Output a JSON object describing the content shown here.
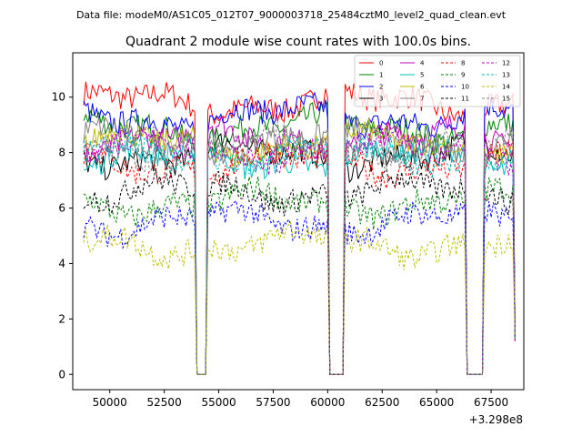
{
  "suptitle": "Data file: modeM0/AS1C05_012T07_9000003718_25484cztM0_level2_quad_clean.evt",
  "chart_data": {
    "type": "line",
    "title": "Quadrant 2 module wise count rates with 100.0s bins.",
    "xlabel": "",
    "ylabel": "",
    "x_offset_label": "+3.298e8",
    "xlim": [
      48300,
      69000
    ],
    "ylim": [
      -0.55,
      11.6
    ],
    "xticks": [
      50000,
      52500,
      55000,
      57500,
      60000,
      62500,
      65000,
      67500
    ],
    "xtick_labels": [
      "50000",
      "52500",
      "55000",
      "57500",
      "60000",
      "62500",
      "65000",
      "67500"
    ],
    "yticks": [
      0,
      2,
      4,
      6,
      8,
      10
    ],
    "ytick_labels": [
      "0",
      "2",
      "4",
      "6",
      "8",
      "10"
    ],
    "time_range": [
      48800,
      68600
    ],
    "bin_size": 100,
    "gaps": [
      [
        54000,
        54400
      ],
      [
        60050,
        60700
      ],
      [
        66400,
        67100
      ]
    ],
    "legend_location": "upper right",
    "series": [
      {
        "name": "0",
        "color": "#ff0000",
        "dash": "solid",
        "mean": 9.8
      },
      {
        "name": "1",
        "color": "#008000",
        "dash": "solid",
        "mean": 8.9
      },
      {
        "name": "2",
        "color": "#0000ff",
        "dash": "solid",
        "mean": 9.3
      },
      {
        "name": "3",
        "color": "#000000",
        "dash": "solid",
        "mean": 7.9
      },
      {
        "name": "4",
        "color": "#bf00bf",
        "dash": "solid",
        "mean": 8.5
      },
      {
        "name": "5",
        "color": "#00bfbf",
        "dash": "solid",
        "mean": 7.8
      },
      {
        "name": "6",
        "color": "#bfbf00",
        "dash": "solid",
        "mean": 8.3
      },
      {
        "name": "7",
        "color": "#808080",
        "dash": "solid",
        "mean": 8.4
      },
      {
        "name": "8",
        "color": "#ff0000",
        "dash": "dashed",
        "mean": 7.6
      },
      {
        "name": "9",
        "color": "#008000",
        "dash": "dashed",
        "mean": 6.2
      },
      {
        "name": "10",
        "color": "#0000ff",
        "dash": "dashed",
        "mean": 5.5
      },
      {
        "name": "11",
        "color": "#000000",
        "dash": "dashed",
        "mean": 6.6
      },
      {
        "name": "12",
        "color": "#bf00bf",
        "dash": "dashed",
        "mean": 8.1
      },
      {
        "name": "13",
        "color": "#00bfbf",
        "dash": "dashed",
        "mean": 7.9
      },
      {
        "name": "14",
        "color": "#bfbf00",
        "dash": "dashed",
        "mean": 4.7
      },
      {
        "name": "15",
        "color": "#808080",
        "dash": "dashed",
        "mean": 8.2
      }
    ]
  }
}
